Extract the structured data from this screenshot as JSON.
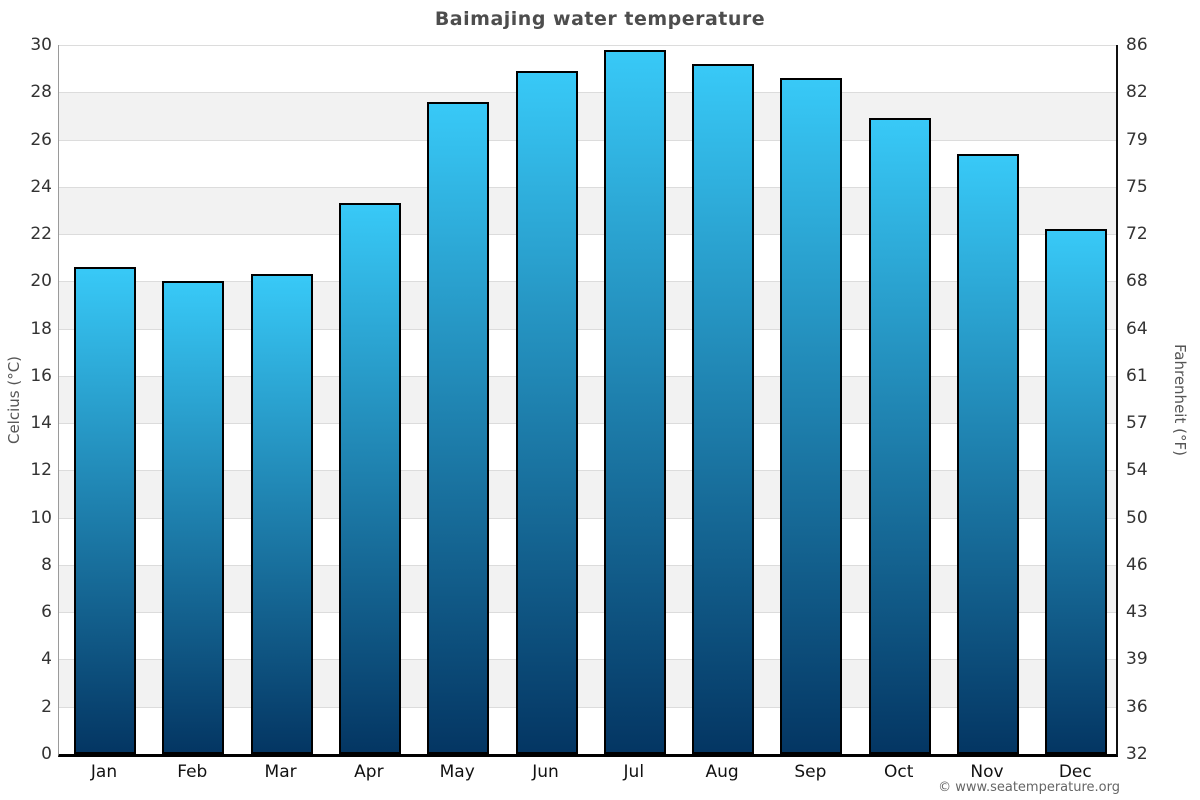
{
  "title": "Baimajing water temperature",
  "watermark": "© www.seatemperature.org",
  "axes": {
    "left_label": "Celcius (°C)",
    "right_label": "Fahrenheit (°F)",
    "celsius_ticks": [
      0,
      2,
      4,
      6,
      8,
      10,
      12,
      14,
      16,
      18,
      20,
      22,
      24,
      26,
      28,
      30
    ],
    "fahrenheit_ticks": [
      32,
      36,
      39,
      43,
      46,
      50,
      54,
      57,
      61,
      64,
      68,
      72,
      75,
      79,
      82,
      86
    ]
  },
  "chart_data": {
    "type": "bar",
    "title": "Baimajing water temperature",
    "categories": [
      "Jan",
      "Feb",
      "Mar",
      "Apr",
      "May",
      "Jun",
      "Jul",
      "Aug",
      "Sep",
      "Oct",
      "Nov",
      "Dec"
    ],
    "values": [
      20.6,
      20.0,
      20.3,
      23.3,
      27.6,
      28.9,
      29.8,
      29.2,
      28.6,
      26.9,
      25.4,
      22.2
    ],
    "unit": "°C",
    "xlabel": "",
    "ylabel_left": "Celcius (°C)",
    "ylabel_right": "Fahrenheit (°F)",
    "ylim": [
      0,
      30
    ],
    "tick_step": 2,
    "grid": "horizontal lines with alternating 2-degree shaded bands",
    "legend": "none"
  },
  "colors": {
    "bar_gradient_top": "#38c9f7",
    "bar_gradient_bottom": "#043663",
    "bar_border": "#000000",
    "band_shaded": "#f2f2f2",
    "band_plain": "#ffffff",
    "gridline": "#dcdcdc",
    "title_text": "#4d4d4d",
    "tick_text": "#333333",
    "month_text": "#111111",
    "axis_title_text": "#555555",
    "watermark_text": "#666666"
  }
}
